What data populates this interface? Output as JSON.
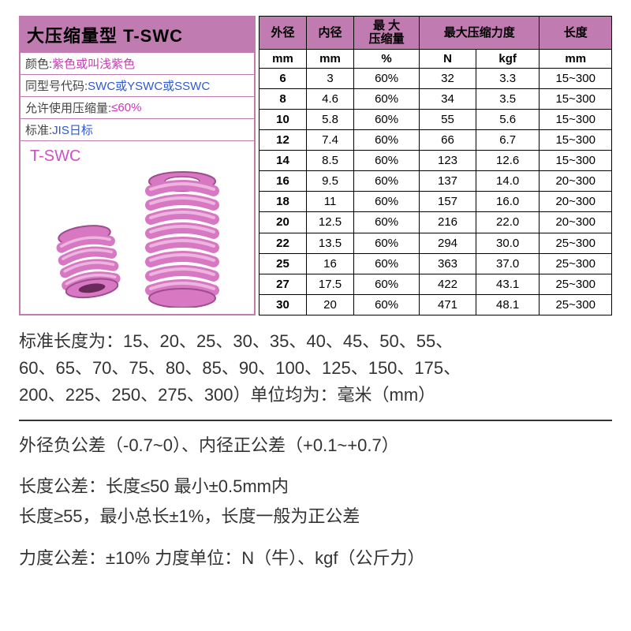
{
  "panel": {
    "title": "大压缩量型 T-SWC",
    "title_bg": "#c07bb0",
    "border_color": "#c07bb0",
    "lines": [
      {
        "label": "颜色:",
        "value": "紫色或叫浅紫色",
        "value_color": "pink"
      },
      {
        "label": "同型号代码:",
        "value": "SWC或YSWC或SSWC",
        "value_color": "blue"
      },
      {
        "label": "允许使用压缩量:",
        "value": "≤60%",
        "value_color": "pink"
      },
      {
        "label": "标准:",
        "value": "JIS日标",
        "value_color": "blue"
      }
    ],
    "spring_label": "T-SWC",
    "spring_color": "#d14fc2"
  },
  "table": {
    "header_bg": "#c07bb0",
    "border_color": "#000000",
    "headers": [
      "外径",
      "内径",
      "最 大\n压缩量",
      "最大压缩力度",
      "长度"
    ],
    "units": [
      "mm",
      "mm",
      "%",
      "N",
      "kgf",
      "mm"
    ],
    "colspans": [
      1,
      1,
      1,
      2,
      1
    ],
    "rows": [
      [
        "6",
        "3",
        "60%",
        "32",
        "3.3",
        "15~300"
      ],
      [
        "8",
        "4.6",
        "60%",
        "34",
        "3.5",
        "15~300"
      ],
      [
        "10",
        "5.8",
        "60%",
        "55",
        "5.6",
        "15~300"
      ],
      [
        "12",
        "7.4",
        "60%",
        "66",
        "6.7",
        "15~300"
      ],
      [
        "14",
        "8.5",
        "60%",
        "123",
        "12.6",
        "15~300"
      ],
      [
        "16",
        "9.5",
        "60%",
        "137",
        "14.0",
        "20~300"
      ],
      [
        "18",
        "11",
        "60%",
        "157",
        "16.0",
        "20~300"
      ],
      [
        "20",
        "12.5",
        "60%",
        "216",
        "22.0",
        "20~300"
      ],
      [
        "22",
        "13.5",
        "60%",
        "294",
        "30.0",
        "25~300"
      ],
      [
        "25",
        "16",
        "60%",
        "363",
        "37.0",
        "25~300"
      ],
      [
        "27",
        "17.5",
        "60%",
        "422",
        "43.1",
        "25~300"
      ],
      [
        "30",
        "20",
        "60%",
        "471",
        "48.1",
        "25~300"
      ]
    ]
  },
  "notes": {
    "font_size": 22,
    "text_color": "#333333",
    "block1": [
      "标准长度为：15、20、25、30、35、40、45、50、55、",
      "60、65、70、75、80、85、90、100、125、150、175、",
      "200、225、250、275、300）单位均为：毫米（mm）"
    ],
    "block2": [
      "外径负公差（-0.7~0）、内径正公差（+0.1~+0.7）",
      "长度公差：长度≤50 最小±0.5mm内",
      "长度≥55，最小总长±1%，长度一般为正公差",
      "力度公差：±10% 力度单位：N（牛）、kgf（公斤力）"
    ]
  }
}
